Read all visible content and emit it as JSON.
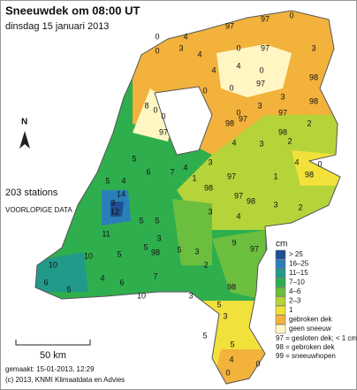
{
  "header": {
    "title": "Sneeuwdek om 08:00 UT",
    "subtitle": "dinsdag 15 januari 2013"
  },
  "info": {
    "stations": "203 stations",
    "status": "VOORLOPIGE DATA",
    "north": "N",
    "scale": "50 km",
    "made": "gemaakt: 15-01-2013, 12:29",
    "copyright": "(c) 2013, KNMI Klimaatdata en Advies"
  },
  "legend": {
    "unit": "cm",
    "items": [
      {
        "label": "> 25",
        "color": "#1f4f94"
      },
      {
        "label": "16–25",
        "color": "#2b7fb8"
      },
      {
        "label": "11–15",
        "color": "#229a8a"
      },
      {
        "label": "7–10",
        "color": "#2fae4e"
      },
      {
        "label": "4–6",
        "color": "#6cbf3e"
      },
      {
        "label": "2–3",
        "color": "#b5d43a"
      },
      {
        "label": "1",
        "color": "#f2e13a"
      },
      {
        "label": "gebroken dek",
        "color": "#f2b23c"
      },
      {
        "label": "geen sneeuw",
        "color": "#fff6c4"
      }
    ],
    "notes": [
      "97 = gesloten dek; < 1 cm",
      "98 = gebroken dek",
      "99 = sneeuwhopen"
    ]
  },
  "stations": [
    0,
    0,
    4,
    97,
    97,
    0,
    3,
    4,
    0,
    97,
    0,
    3,
    98,
    4,
    4,
    97,
    98,
    0,
    0,
    97,
    98,
    8,
    0,
    0,
    97,
    98,
    97,
    3,
    0,
    2,
    3,
    2,
    3,
    4,
    3,
    0,
    4,
    98,
    1,
    97,
    1,
    98,
    97,
    98,
    3,
    2,
    4,
    5,
    6,
    7,
    5,
    4,
    9,
    14,
    12,
    11,
    5,
    5,
    3,
    5,
    98,
    5,
    3,
    3,
    4,
    9,
    97,
    5,
    10,
    6,
    10,
    5,
    4,
    6,
    10,
    7,
    2,
    98,
    3,
    5,
    3,
    5,
    4,
    0,
    0,
    5
  ]
}
